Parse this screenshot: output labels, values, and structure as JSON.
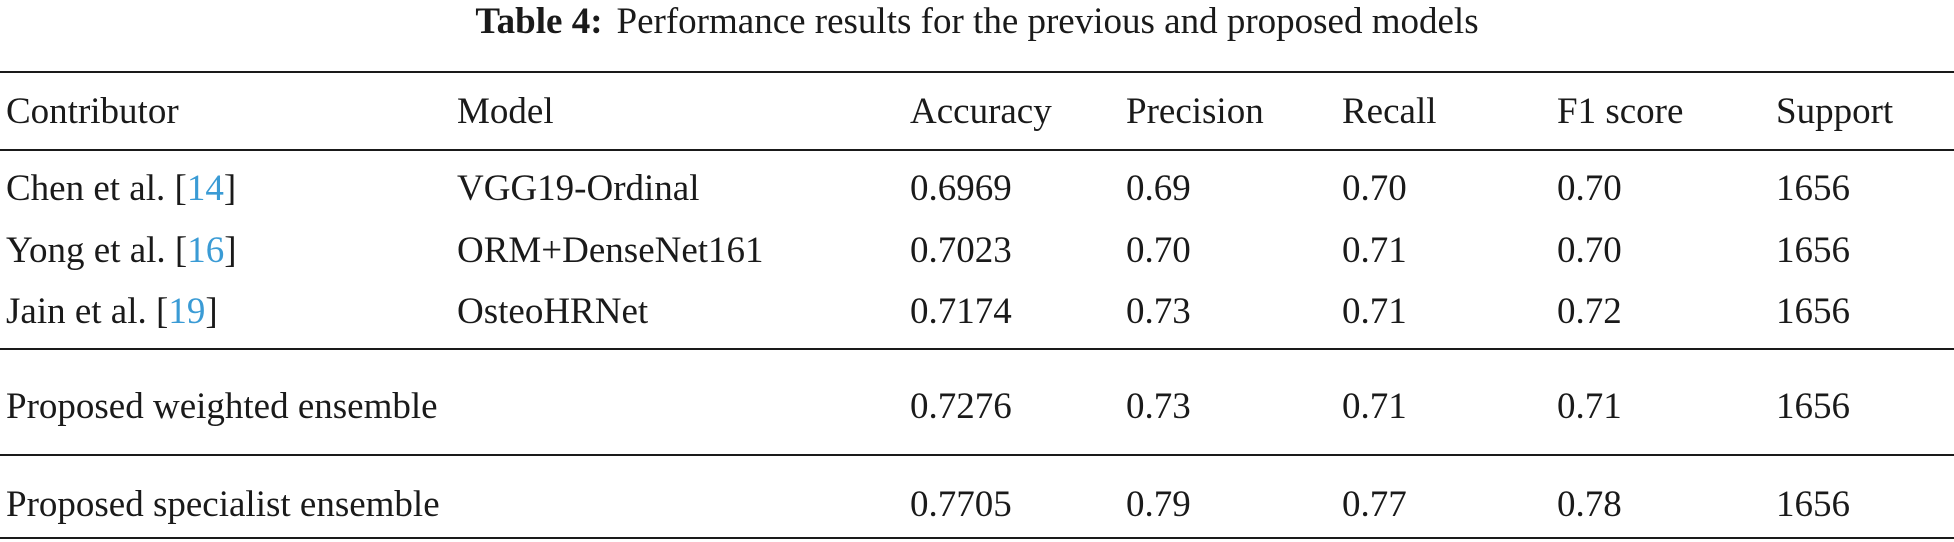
{
  "caption": {
    "label": "Table 4:",
    "text": "Performance results for the previous and proposed models"
  },
  "table": {
    "header": [
      "Contributor",
      "Model",
      "Accuracy",
      "Precision",
      "Recall",
      "F1 score",
      "Support"
    ],
    "rows": [
      [
        [
          "Chen et al. [",
          "14",
          "]"
        ],
        "VGG19-Ordinal",
        "0.6969",
        "0.69",
        "0.70",
        "0.70",
        "1656"
      ],
      [
        [
          "Yong et al. [",
          "16",
          "]"
        ],
        "ORM+DenseNet161",
        "0.7023",
        "0.70",
        "0.71",
        "0.70",
        "1656"
      ],
      [
        [
          "Jain et al. [",
          "19",
          "]"
        ],
        "OsteoHRNet",
        "0.7174",
        "0.73",
        "0.71",
        "0.72",
        "1656"
      ]
    ],
    "proposed_rows": [
      [
        "Proposed weighted ensemble",
        "0.7276",
        "0.73",
        "0.71",
        "0.71",
        "1656"
      ],
      [
        "Proposed specialist ensemble",
        "0.7705",
        "0.79",
        "0.77",
        "0.78",
        "1656"
      ]
    ]
  }
}
